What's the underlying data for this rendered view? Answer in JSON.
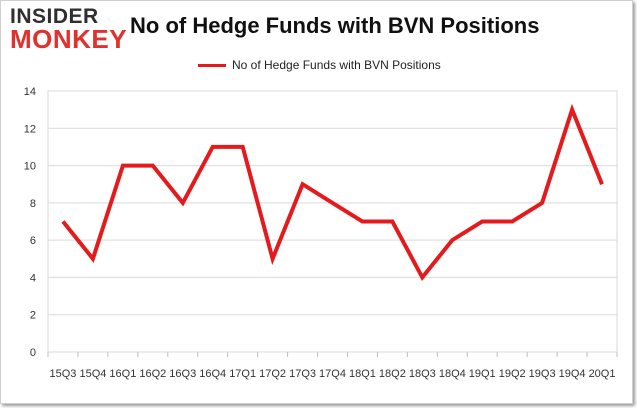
{
  "logo": {
    "line1": "INSIDER",
    "line2": "MONKEY"
  },
  "chart_data": {
    "type": "line",
    "title": "No of Hedge Funds with BVN Positions",
    "xlabel": "",
    "ylabel": "",
    "categories": [
      "15Q3",
      "15Q4",
      "16Q1",
      "16Q2",
      "16Q3",
      "16Q4",
      "17Q1",
      "17Q2",
      "17Q3",
      "17Q4",
      "18Q1",
      "18Q2",
      "18Q3",
      "18Q4",
      "19Q1",
      "19Q2",
      "19Q3",
      "19Q4",
      "20Q1"
    ],
    "series": [
      {
        "name": "No of Hedge Funds with BVN Positions",
        "values": [
          7,
          5,
          10,
          10,
          8,
          11,
          11,
          5,
          9,
          8,
          7,
          7,
          4,
          6,
          7,
          7,
          8,
          13,
          9
        ],
        "color": "#e41a1c"
      }
    ],
    "ylim": [
      0,
      14
    ],
    "yticks": [
      0,
      2,
      4,
      6,
      8,
      10,
      12,
      14
    ],
    "grid": true,
    "legend": "top"
  }
}
